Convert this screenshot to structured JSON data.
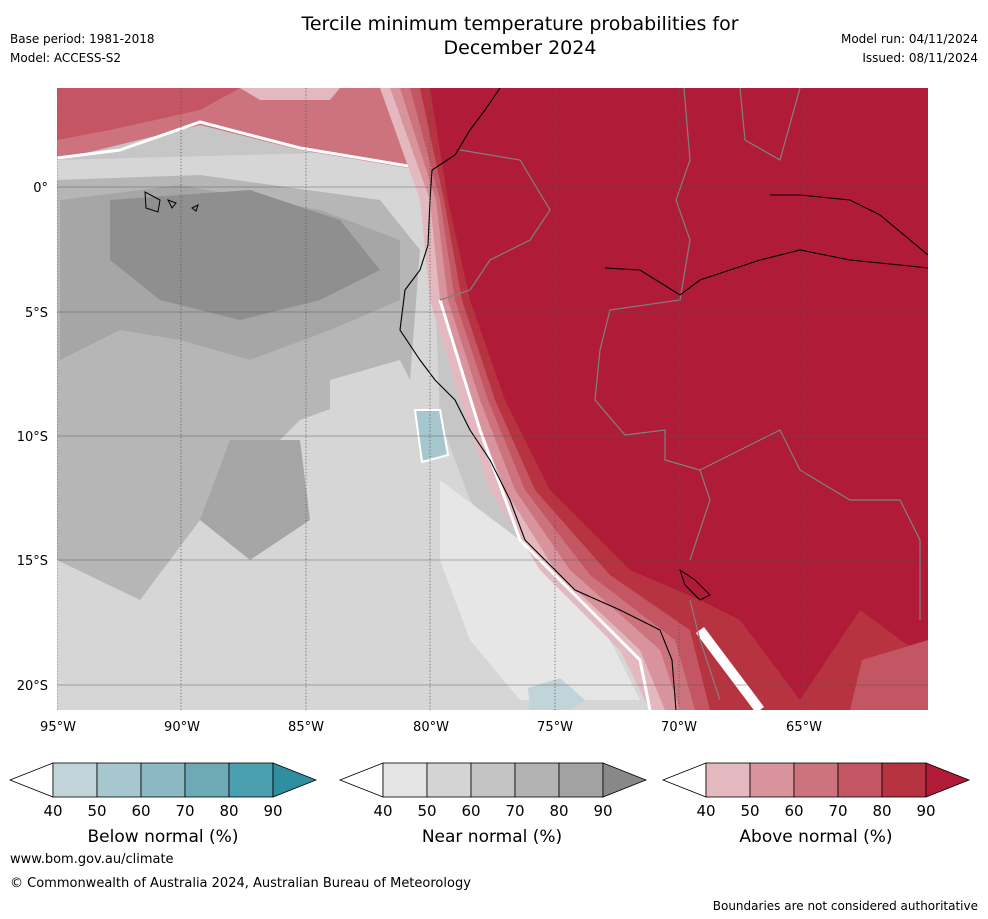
{
  "header": {
    "title_line1": "Tercile minimum temperature probabilities for",
    "title_line2": "December 2024",
    "base_period": "Base period: 1981-2018",
    "model": "Model: ACCESS-S2",
    "model_run": "Model run: 04/11/2024",
    "issued": "Issued: 08/11/2024"
  },
  "axes": {
    "lon_labels": [
      "95°W",
      "90°W",
      "85°W",
      "80°W",
      "75°W",
      "70°W",
      "65°W"
    ],
    "lat_labels": [
      "0°",
      "5°S",
      "10°S",
      "15°S",
      "20°S"
    ]
  },
  "legends": [
    {
      "caption": "Below normal (%)",
      "ticks": [
        "40",
        "50",
        "60",
        "70",
        "80",
        "90"
      ],
      "colors": [
        "#ffffff",
        "#c0d4da",
        "#a7c7ce",
        "#8bb8c3",
        "#6eaab6",
        "#4aa0ae",
        "#2e8fa0"
      ]
    },
    {
      "caption": "Near normal (%)",
      "ticks": [
        "40",
        "50",
        "60",
        "70",
        "80",
        "90"
      ],
      "colors": [
        "#ffffff",
        "#e4e4e4",
        "#d4d4d4",
        "#c3c3c3",
        "#b3b3b3",
        "#a2a2a2",
        "#888888"
      ]
    },
    {
      "caption": "Above normal (%)",
      "ticks": [
        "40",
        "50",
        "60",
        "70",
        "80",
        "90"
      ],
      "colors": [
        "#ffffff",
        "#e3b8bf",
        "#d8939c",
        "#cd737d",
        "#c45563",
        "#b6333f",
        "#b01c38"
      ]
    }
  ],
  "footer": {
    "website": "www.bom.gov.au/climate",
    "copyright": "© Commonwealth of Australia 2024, Australian Bureau of Meteorology",
    "disclaimer": "Boundaries are not considered authoritative"
  }
}
